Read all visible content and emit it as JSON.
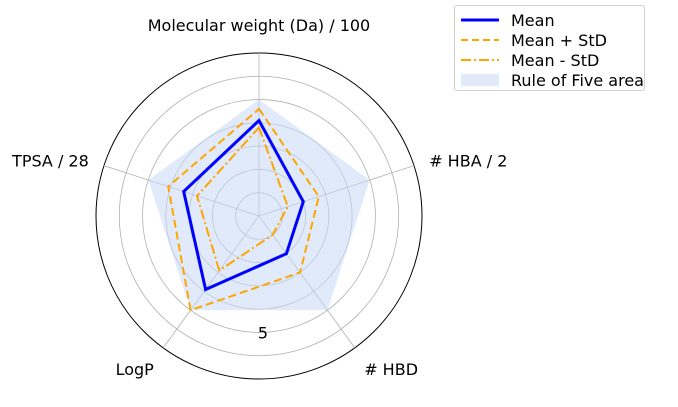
{
  "chart_data": {
    "type": "radar",
    "axes": [
      "Molecular weight (Da) / 100",
      "# HBA / 2",
      "# HBD",
      "LogP",
      "TPSA / 28"
    ],
    "r_max": 7,
    "r_gridlines": [
      1,
      2,
      3,
      4,
      5,
      6,
      7
    ],
    "r_tick_labels": [
      {
        "value": 5,
        "label": "5"
      }
    ],
    "grid": true,
    "legend_position": "top-right",
    "series": [
      {
        "name": "Mean",
        "values": [
          4.1,
          2.0,
          2.0,
          3.9,
          3.4
        ],
        "color": "#0000ff",
        "style": "solid"
      },
      {
        "name": "Mean + StD",
        "values": [
          4.6,
          2.7,
          3.0,
          5.0,
          4.1
        ],
        "color": "#ffa500",
        "style": "dashed"
      },
      {
        "name": "Mean - StD",
        "values": [
          3.8,
          1.3,
          1.0,
          2.9,
          2.8
        ],
        "color": "#ffa500",
        "style": "dashdot"
      },
      {
        "name": "Rule of Five area",
        "values": [
          5,
          5,
          5,
          5,
          5
        ],
        "color": "#c6d8f5",
        "style": "fill"
      }
    ]
  }
}
